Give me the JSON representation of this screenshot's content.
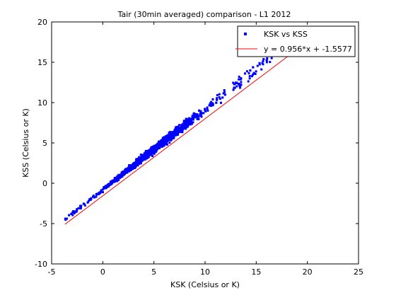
{
  "chart_data": {
    "type": "scatter",
    "title": "Tair (30min averaged) comparison - L1 2012",
    "xlabel": "KSK (Celsius or K)",
    "ylabel": "KSS (Celsius or K)",
    "xlim": [
      -5,
      25
    ],
    "ylim": [
      -10,
      20
    ],
    "xticks": [
      -5,
      0,
      5,
      10,
      15,
      20,
      25
    ],
    "yticks": [
      -10,
      -5,
      0,
      5,
      10,
      15,
      20
    ],
    "grid": false,
    "legend_position": "top-right",
    "colors": {
      "scatter": "#0000ff",
      "fit": "#ff0000",
      "axes": "#000000",
      "background": "#ffffff"
    },
    "series": [
      {
        "name": "KSK vs KSS",
        "kind": "scatter",
        "x_range": [
          -3.7,
          17.5
        ],
        "trend": {
          "slope": 1.0,
          "intercept": -0.8
        },
        "spread": 0.5
      },
      {
        "name": "y = 0.956*x + -1.5577",
        "kind": "line",
        "slope": 0.956,
        "intercept": -1.5577,
        "x_range": [
          -3.7,
          18.2
        ]
      }
    ]
  }
}
